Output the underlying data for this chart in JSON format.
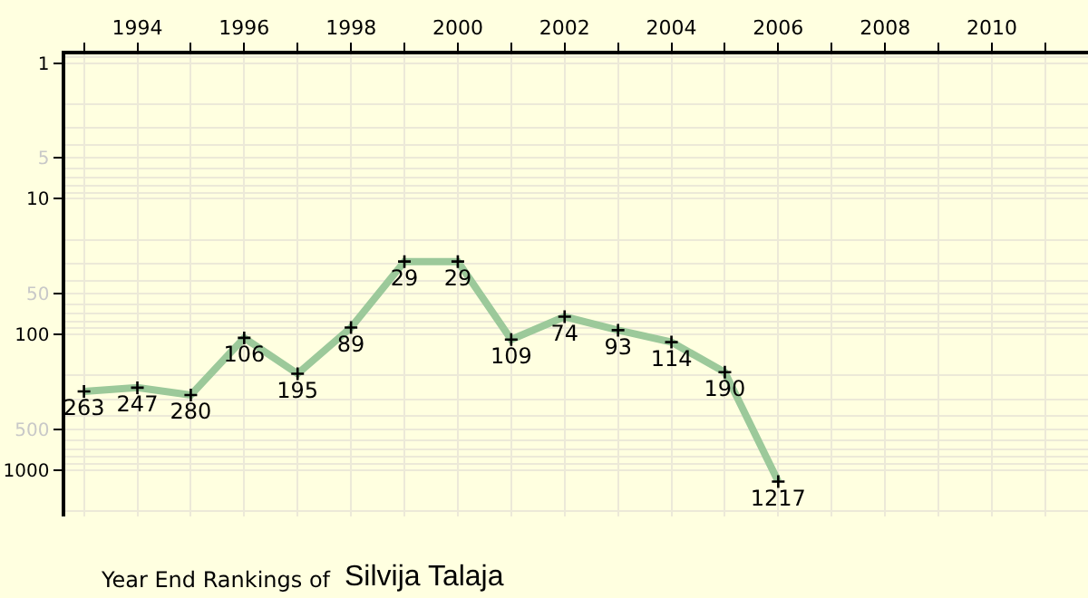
{
  "chart_data": {
    "type": "line",
    "title": "Year End Rankings of",
    "subtitle": "Silvija Talaja",
    "x": [
      1993,
      1994,
      1995,
      1996,
      1997,
      1998,
      1999,
      2000,
      2001,
      2002,
      2003,
      2004,
      2005,
      2006
    ],
    "series": [
      {
        "color": "#9cc99a",
        "values": [
          263,
          247,
          280,
          106,
          195,
          89,
          29,
          29,
          109,
          74,
          93,
          114,
          190,
          1217
        ]
      }
    ],
    "xlim": [
      1992.65,
      2011.8
    ],
    "xticks": [
      {
        "value": 1993,
        "label": null
      },
      1994,
      {
        "value": 1995,
        "label": null
      },
      1996,
      {
        "value": 1997,
        "label": null
      },
      1998,
      {
        "value": 1999,
        "label": null
      },
      2000,
      {
        "value": 2001,
        "label": null
      },
      2002,
      {
        "value": 2003,
        "label": null
      },
      2004,
      {
        "value": 2005,
        "label": null
      },
      2006,
      {
        "value": 2007,
        "label": null
      },
      2008,
      {
        "value": 2009,
        "label": null
      },
      2010,
      {
        "value": 2011,
        "label": null
      }
    ],
    "ylim": [
      2200,
      0.86
    ],
    "yticks": [
      1,
      {
        "value": 5,
        "label": "5"
      },
      10,
      {
        "value": 50,
        "label": "50"
      },
      100,
      {
        "value": 500,
        "label": "500"
      },
      1000
    ],
    "log": "y",
    "grid": true,
    "marker": "cross",
    "line_style": "solid",
    "data_labels": true
  }
}
